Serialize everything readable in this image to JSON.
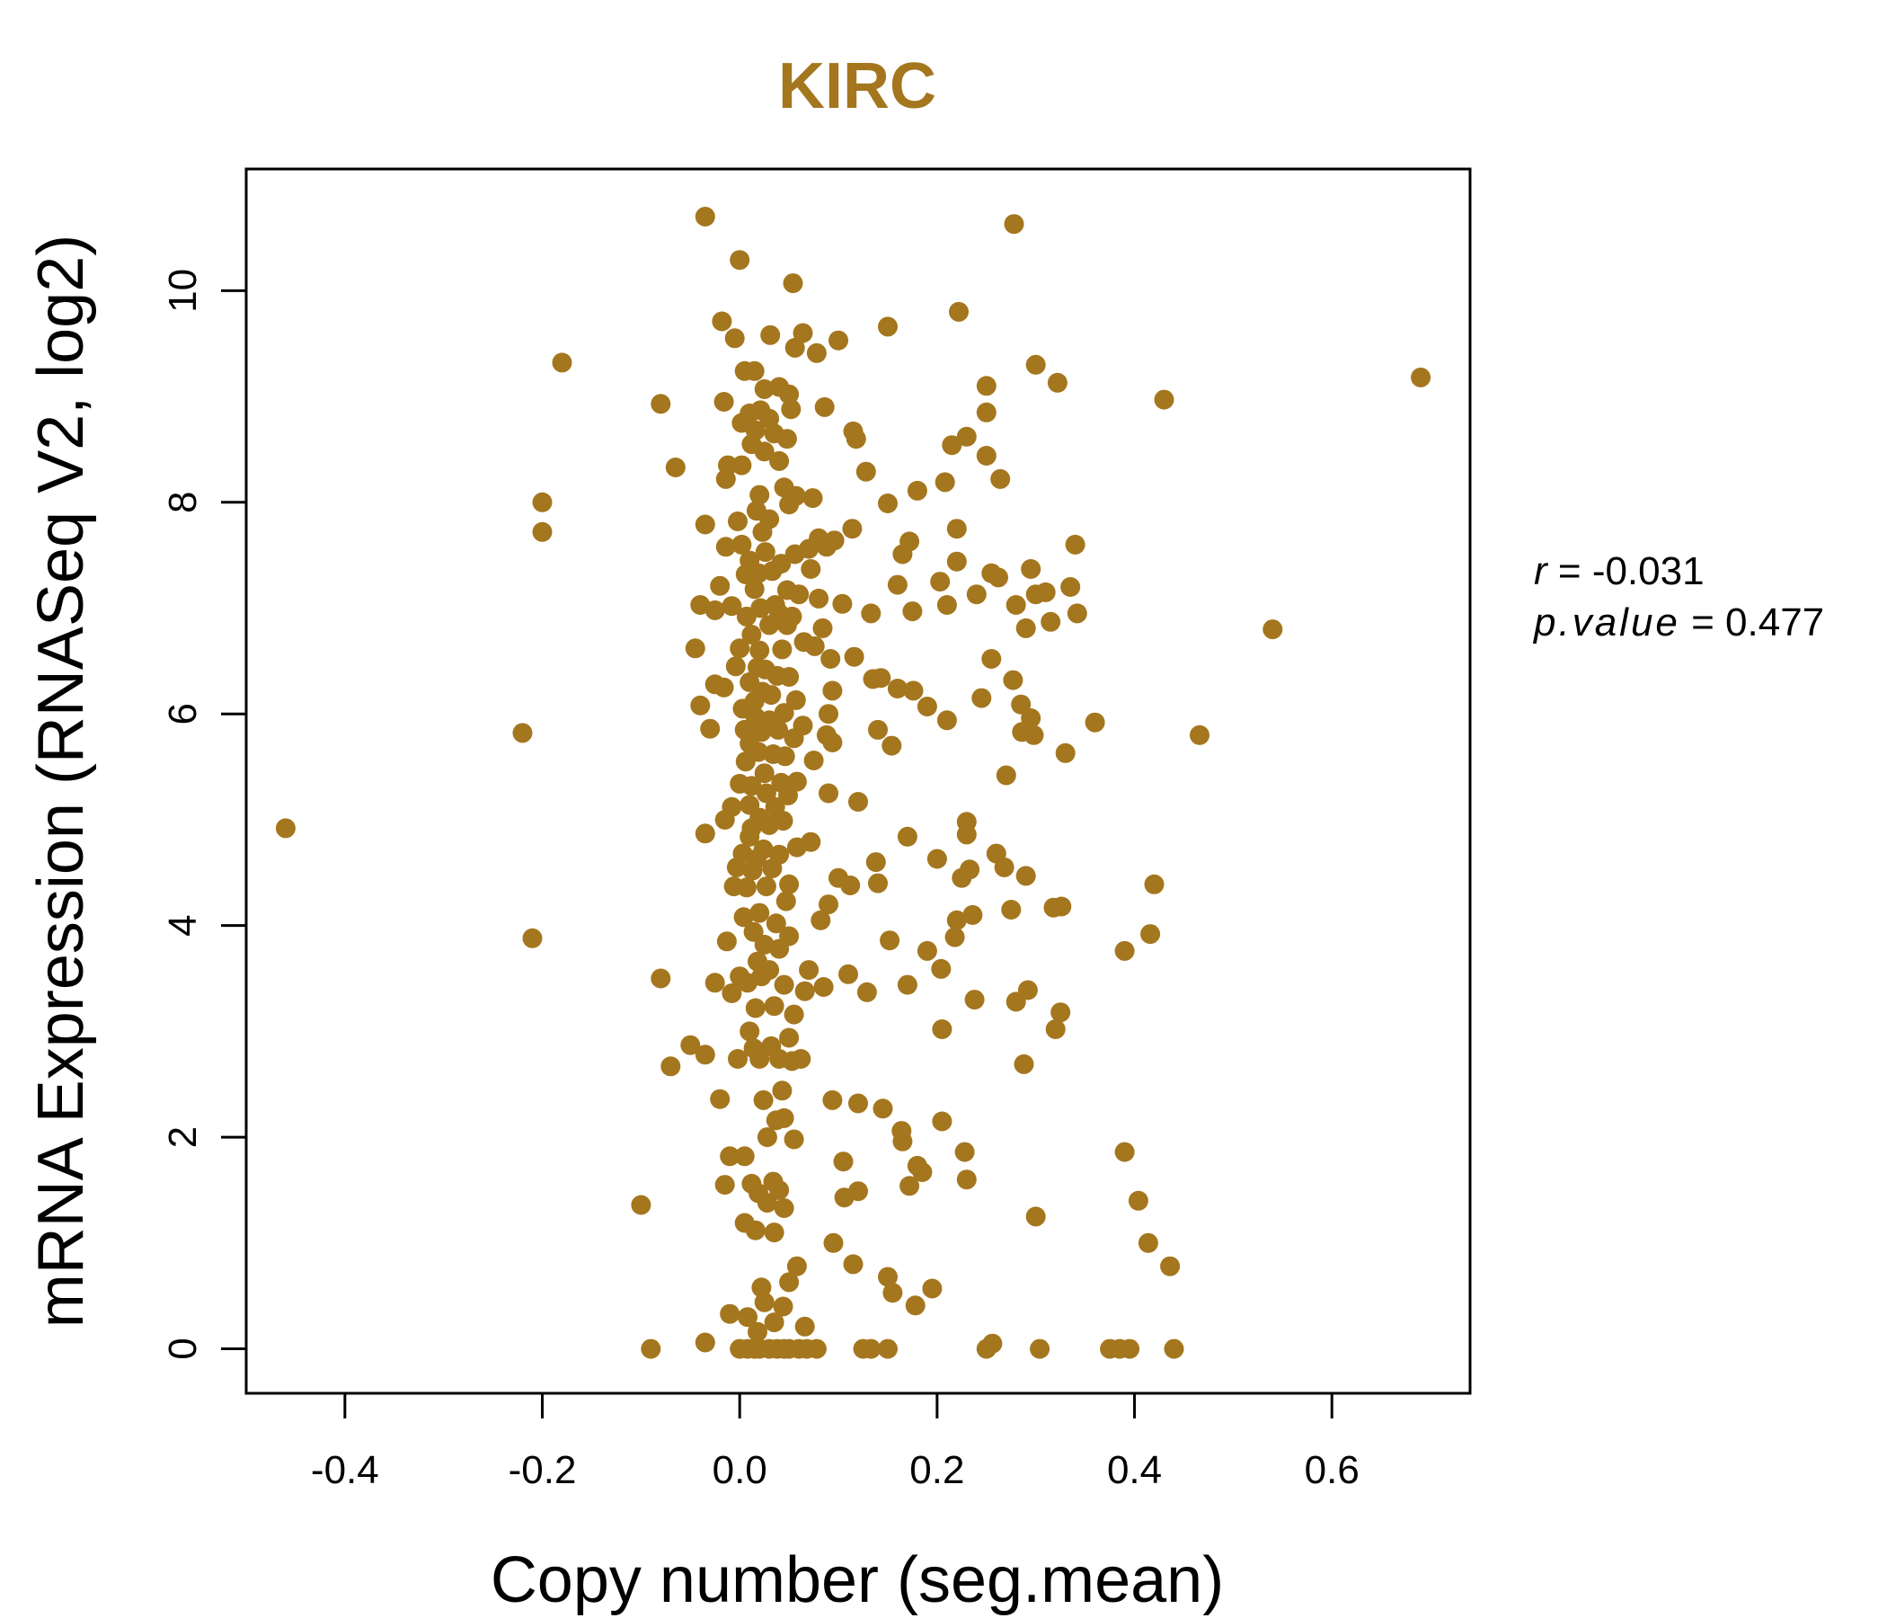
{
  "colors": {
    "accent": "#A4761E",
    "axis": "#000000",
    "background": "#FFFFFF"
  },
  "chart_data": {
    "type": "scatter",
    "title": "KIRC",
    "xlabel": "Copy number (seg.mean)",
    "ylabel": "mRNA Expression (RNASeq V2, log2)",
    "xlim": [
      -0.5,
      0.74
    ],
    "ylim": [
      -0.42,
      11.15
    ],
    "x_ticks": [
      -0.4,
      -0.2,
      0.0,
      0.2,
      0.4,
      0.6
    ],
    "x_tick_labels": [
      "-0.4",
      "-0.2",
      "0.0",
      "0.2",
      "0.4",
      "0.6"
    ],
    "y_ticks": [
      0,
      2,
      4,
      6,
      8,
      10
    ],
    "y_tick_labels": [
      "0",
      "2",
      "4",
      "6",
      "8",
      "10"
    ],
    "grid": false,
    "legend": "none",
    "stats": {
      "r_label": "r",
      "r_value": "-0.031",
      "p_label": "p.value",
      "p_value": "0.477"
    },
    "points": [
      [
        -0.46,
        4.92
      ],
      [
        -0.22,
        5.82
      ],
      [
        -0.2,
        8.0
      ],
      [
        -0.2,
        7.72
      ],
      [
        -0.21,
        3.88
      ],
      [
        -0.18,
        9.32
      ],
      [
        -0.1,
        1.36
      ],
      [
        -0.09,
        0.0
      ],
      [
        -0.08,
        8.93
      ],
      [
        -0.08,
        3.5
      ],
      [
        -0.07,
        2.67
      ],
      [
        -0.065,
        8.33
      ],
      [
        -0.05,
        2.87
      ],
      [
        -0.045,
        6.62
      ],
      [
        -0.04,
        7.03
      ],
      [
        -0.04,
        6.08
      ],
      [
        -0.035,
        10.7
      ],
      [
        -0.035,
        7.79
      ],
      [
        -0.035,
        4.87
      ],
      [
        -0.035,
        2.78
      ],
      [
        -0.035,
        0.06
      ],
      [
        -0.03,
        5.86
      ],
      [
        -0.025,
        6.98
      ],
      [
        -0.025,
        6.28
      ],
      [
        -0.025,
        3.46
      ],
      [
        -0.02,
        7.21
      ],
      [
        -0.02,
        2.36
      ],
      [
        -0.018,
        9.71
      ],
      [
        -0.016,
        8.95
      ],
      [
        -0.016,
        6.25
      ],
      [
        -0.015,
        5.0
      ],
      [
        -0.015,
        1.55
      ],
      [
        -0.014,
        8.22
      ],
      [
        -0.014,
        7.58
      ],
      [
        -0.013,
        3.85
      ],
      [
        -0.012,
        8.35
      ],
      [
        -0.01,
        1.82
      ],
      [
        -0.01,
        0.33
      ],
      [
        -0.008,
        7.02
      ],
      [
        -0.008,
        5.12
      ],
      [
        -0.008,
        3.36
      ],
      [
        -0.006,
        4.37
      ],
      [
        -0.005,
        9.55
      ],
      [
        -0.004,
        6.45
      ],
      [
        -0.003,
        4.55
      ],
      [
        -0.002,
        7.82
      ],
      [
        -0.002,
        2.74
      ],
      [
        0.0,
        10.29
      ],
      [
        0.0,
        6.62
      ],
      [
        0.0,
        5.34
      ],
      [
        0.0,
        3.52
      ],
      [
        0.0,
        0.0
      ],
      [
        0.002,
        8.75
      ],
      [
        0.002,
        8.35
      ],
      [
        0.002,
        7.6
      ],
      [
        0.003,
        6.05
      ],
      [
        0.003,
        4.68
      ],
      [
        0.004,
        4.08
      ],
      [
        0.005,
        9.24
      ],
      [
        0.005,
        5.85
      ],
      [
        0.005,
        1.82
      ],
      [
        0.005,
        1.19
      ],
      [
        0.006,
        7.32
      ],
      [
        0.006,
        5.55
      ],
      [
        0.007,
        6.92
      ],
      [
        0.007,
        4.36
      ],
      [
        0.008,
        3.46
      ],
      [
        0.008,
        0.3
      ],
      [
        0.008,
        0.0
      ],
      [
        0.01,
        8.84
      ],
      [
        0.01,
        7.45
      ],
      [
        0.01,
        6.3
      ],
      [
        0.01,
        5.72
      ],
      [
        0.01,
        5.14
      ],
      [
        0.01,
        4.84
      ],
      [
        0.01,
        3.0
      ],
      [
        0.012,
        8.55
      ],
      [
        0.012,
        6.75
      ],
      [
        0.012,
        5.32
      ],
      [
        0.012,
        4.92
      ],
      [
        0.012,
        1.56
      ],
      [
        0.013,
        4.52
      ],
      [
        0.014,
        3.94
      ],
      [
        0.014,
        2.84
      ],
      [
        0.015,
        9.24
      ],
      [
        0.015,
        7.18
      ],
      [
        0.015,
        6.12
      ],
      [
        0.015,
        0.0
      ],
      [
        0.016,
        8.68
      ],
      [
        0.016,
        5.97
      ],
      [
        0.016,
        3.22
      ],
      [
        0.016,
        1.12
      ],
      [
        0.017,
        7.92
      ],
      [
        0.017,
        4.63
      ],
      [
        0.018,
        6.44
      ],
      [
        0.018,
        3.66
      ],
      [
        0.018,
        0.16
      ],
      [
        0.019,
        7.33
      ],
      [
        0.019,
        5.64
      ],
      [
        0.019,
        1.47
      ],
      [
        0.02,
        8.07
      ],
      [
        0.02,
        6.6
      ],
      [
        0.02,
        5.02
      ],
      [
        0.02,
        4.12
      ],
      [
        0.02,
        2.74
      ],
      [
        0.02,
        0.0
      ],
      [
        0.021,
        8.87
      ],
      [
        0.021,
        7.0
      ],
      [
        0.022,
        5.83
      ],
      [
        0.022,
        3.52
      ],
      [
        0.022,
        0.58
      ],
      [
        0.023,
        7.72
      ],
      [
        0.023,
        6.21
      ],
      [
        0.024,
        4.72
      ],
      [
        0.024,
        2.35
      ],
      [
        0.025,
        9.07
      ],
      [
        0.025,
        8.48
      ],
      [
        0.025,
        5.44
      ],
      [
        0.025,
        3.82
      ],
      [
        0.025,
        0.44
      ],
      [
        0.026,
        7.53
      ],
      [
        0.026,
        6.42
      ],
      [
        0.027,
        5.25
      ],
      [
        0.027,
        4.37
      ],
      [
        0.028,
        2.0
      ],
      [
        0.028,
        1.38
      ],
      [
        0.03,
        8.79
      ],
      [
        0.03,
        7.84
      ],
      [
        0.03,
        6.84
      ],
      [
        0.03,
        5.94
      ],
      [
        0.03,
        4.95
      ],
      [
        0.03,
        3.58
      ],
      [
        0.03,
        0.0
      ],
      [
        0.031,
        9.58
      ],
      [
        0.032,
        6.18
      ],
      [
        0.032,
        2.86
      ],
      [
        0.033,
        7.35
      ],
      [
        0.033,
        4.54
      ],
      [
        0.034,
        5.62
      ],
      [
        0.034,
        1.58
      ],
      [
        0.035,
        8.65
      ],
      [
        0.035,
        3.24
      ],
      [
        0.035,
        1.1
      ],
      [
        0.035,
        0.25
      ],
      [
        0.036,
        7.03
      ],
      [
        0.036,
        5.12
      ],
      [
        0.037,
        4.02
      ],
      [
        0.037,
        2.16
      ],
      [
        0.038,
        6.36
      ],
      [
        0.038,
        0.0
      ],
      [
        0.039,
        5.85
      ],
      [
        0.04,
        9.09
      ],
      [
        0.04,
        8.39
      ],
      [
        0.04,
        6.95
      ],
      [
        0.04,
        4.67
      ],
      [
        0.04,
        3.78
      ],
      [
        0.04,
        2.74
      ],
      [
        0.04,
        1.5
      ],
      [
        0.042,
        7.42
      ],
      [
        0.042,
        5.35
      ],
      [
        0.043,
        6.61
      ],
      [
        0.043,
        2.44
      ],
      [
        0.044,
        4.99
      ],
      [
        0.044,
        0.4
      ],
      [
        0.045,
        8.14
      ],
      [
        0.045,
        6.01
      ],
      [
        0.045,
        3.44
      ],
      [
        0.045,
        2.18
      ],
      [
        0.045,
        1.33
      ],
      [
        0.045,
        0.0
      ],
      [
        0.046,
        5.6
      ],
      [
        0.047,
        4.23
      ],
      [
        0.048,
        8.6
      ],
      [
        0.048,
        7.17
      ],
      [
        0.048,
        6.84
      ],
      [
        0.049,
        5.23
      ],
      [
        0.05,
        9.02
      ],
      [
        0.05,
        7.98
      ],
      [
        0.05,
        6.35
      ],
      [
        0.05,
        4.39
      ],
      [
        0.05,
        3.9
      ],
      [
        0.05,
        2.94
      ],
      [
        0.05,
        0.63
      ],
      [
        0.05,
        0.0
      ],
      [
        0.052,
        8.88
      ],
      [
        0.053,
        6.92
      ],
      [
        0.053,
        2.72
      ],
      [
        0.054,
        10.07
      ],
      [
        0.055,
        5.77
      ],
      [
        0.055,
        3.16
      ],
      [
        0.055,
        1.98
      ],
      [
        0.056,
        9.46
      ],
      [
        0.056,
        7.51
      ],
      [
        0.057,
        8.06
      ],
      [
        0.057,
        6.13
      ],
      [
        0.058,
        5.36
      ],
      [
        0.058,
        4.74
      ],
      [
        0.058,
        0.78
      ],
      [
        0.06,
        7.13
      ],
      [
        0.06,
        0.0
      ],
      [
        0.062,
        2.74
      ],
      [
        0.064,
        9.6
      ],
      [
        0.064,
        5.89
      ],
      [
        0.065,
        6.68
      ],
      [
        0.066,
        3.38
      ],
      [
        0.066,
        0.21
      ],
      [
        0.068,
        0.0
      ],
      [
        0.07,
        7.56
      ],
      [
        0.07,
        3.58
      ],
      [
        0.072,
        7.37
      ],
      [
        0.072,
        4.79
      ],
      [
        0.074,
        8.04
      ],
      [
        0.075,
        5.56
      ],
      [
        0.076,
        6.64
      ],
      [
        0.078,
        9.41
      ],
      [
        0.078,
        0.0
      ],
      [
        0.08,
        7.66
      ],
      [
        0.08,
        7.09
      ],
      [
        0.082,
        4.05
      ],
      [
        0.084,
        6.81
      ],
      [
        0.085,
        3.42
      ],
      [
        0.086,
        8.9
      ],
      [
        0.088,
        7.58
      ],
      [
        0.088,
        5.8
      ],
      [
        0.09,
        6.0
      ],
      [
        0.09,
        5.25
      ],
      [
        0.09,
        4.2
      ],
      [
        0.092,
        6.52
      ],
      [
        0.094,
        6.22
      ],
      [
        0.094,
        5.73
      ],
      [
        0.094,
        2.35
      ],
      [
        0.095,
        1.0
      ],
      [
        0.096,
        7.64
      ],
      [
        0.1,
        9.53
      ],
      [
        0.1,
        4.45
      ],
      [
        0.104,
        7.04
      ],
      [
        0.105,
        1.77
      ],
      [
        0.106,
        1.43
      ],
      [
        0.11,
        3.54
      ],
      [
        0.112,
        4.38
      ],
      [
        0.114,
        7.75
      ],
      [
        0.115,
        8.67
      ],
      [
        0.115,
        0.8
      ],
      [
        0.116,
        6.54
      ],
      [
        0.118,
        8.6
      ],
      [
        0.12,
        5.17
      ],
      [
        0.12,
        2.32
      ],
      [
        0.12,
        1.49
      ],
      [
        0.125,
        0.0
      ],
      [
        0.128,
        8.29
      ],
      [
        0.129,
        3.37
      ],
      [
        0.133,
        6.95
      ],
      [
        0.133,
        0.0
      ],
      [
        0.135,
        6.33
      ],
      [
        0.138,
        4.6
      ],
      [
        0.14,
        4.4
      ],
      [
        0.14,
        5.85
      ],
      [
        0.143,
        6.34
      ],
      [
        0.145,
        2.27
      ],
      [
        0.15,
        9.66
      ],
      [
        0.15,
        7.99
      ],
      [
        0.15,
        0.68
      ],
      [
        0.15,
        0.0
      ],
      [
        0.152,
        3.86
      ],
      [
        0.154,
        5.7
      ],
      [
        0.155,
        0.53
      ],
      [
        0.16,
        7.22
      ],
      [
        0.16,
        6.24
      ],
      [
        0.164,
        2.06
      ],
      [
        0.165,
        7.51
      ],
      [
        0.165,
        1.96
      ],
      [
        0.17,
        4.84
      ],
      [
        0.17,
        3.44
      ],
      [
        0.172,
        7.63
      ],
      [
        0.172,
        1.54
      ],
      [
        0.175,
        6.97
      ],
      [
        0.176,
        6.22
      ],
      [
        0.178,
        0.41
      ],
      [
        0.18,
        8.11
      ],
      [
        0.18,
        1.73
      ],
      [
        0.185,
        1.67
      ],
      [
        0.19,
        6.07
      ],
      [
        0.19,
        3.76
      ],
      [
        0.195,
        0.57
      ],
      [
        0.2,
        4.63
      ],
      [
        0.203,
        7.25
      ],
      [
        0.204,
        3.59
      ],
      [
        0.205,
        2.15
      ],
      [
        0.205,
        3.02
      ],
      [
        0.208,
        8.19
      ],
      [
        0.21,
        7.03
      ],
      [
        0.21,
        5.94
      ],
      [
        0.215,
        8.54
      ],
      [
        0.218,
        3.89
      ],
      [
        0.22,
        7.75
      ],
      [
        0.22,
        7.44
      ],
      [
        0.22,
        4.05
      ],
      [
        0.222,
        9.8
      ],
      [
        0.225,
        4.45
      ],
      [
        0.228,
        1.86
      ],
      [
        0.23,
        4.98
      ],
      [
        0.23,
        4.86
      ],
      [
        0.23,
        1.6
      ],
      [
        0.23,
        8.62
      ],
      [
        0.233,
        4.53
      ],
      [
        0.236,
        4.1
      ],
      [
        0.238,
        3.3
      ],
      [
        0.24,
        7.13
      ],
      [
        0.245,
        6.15
      ],
      [
        0.25,
        8.44
      ],
      [
        0.25,
        9.1
      ],
      [
        0.25,
        8.85
      ],
      [
        0.25,
        0.0
      ],
      [
        0.255,
        6.52
      ],
      [
        0.255,
        7.33
      ],
      [
        0.256,
        0.05
      ],
      [
        0.26,
        4.68
      ],
      [
        0.262,
        7.29
      ],
      [
        0.264,
        8.22
      ],
      [
        0.268,
        4.55
      ],
      [
        0.27,
        5.42
      ],
      [
        0.275,
        4.15
      ],
      [
        0.277,
        6.32
      ],
      [
        0.278,
        10.63
      ],
      [
        0.28,
        7.03
      ],
      [
        0.28,
        3.28
      ],
      [
        0.285,
        6.09
      ],
      [
        0.286,
        5.83
      ],
      [
        0.288,
        2.69
      ],
      [
        0.29,
        6.81
      ],
      [
        0.29,
        4.47
      ],
      [
        0.292,
        3.39
      ],
      [
        0.295,
        5.96
      ],
      [
        0.295,
        7.37
      ],
      [
        0.298,
        5.8
      ],
      [
        0.3,
        7.13
      ],
      [
        0.3,
        9.3
      ],
      [
        0.3,
        1.25
      ],
      [
        0.304,
        0.0
      ],
      [
        0.31,
        7.15
      ],
      [
        0.315,
        6.87
      ],
      [
        0.318,
        4.17
      ],
      [
        0.32,
        3.02
      ],
      [
        0.322,
        9.13
      ],
      [
        0.325,
        3.18
      ],
      [
        0.326,
        4.18
      ],
      [
        0.33,
        5.63
      ],
      [
        0.335,
        7.2
      ],
      [
        0.34,
        7.6
      ],
      [
        0.342,
        6.95
      ],
      [
        0.36,
        5.92
      ],
      [
        0.375,
        0.0
      ],
      [
        0.385,
        0.0
      ],
      [
        0.39,
        1.86
      ],
      [
        0.39,
        3.76
      ],
      [
        0.395,
        0.0
      ],
      [
        0.404,
        1.4
      ],
      [
        0.414,
        1.0
      ],
      [
        0.416,
        3.92
      ],
      [
        0.42,
        4.39
      ],
      [
        0.43,
        8.97
      ],
      [
        0.436,
        0.78
      ],
      [
        0.44,
        0.0
      ],
      [
        0.466,
        5.8
      ],
      [
        0.54,
        6.8
      ],
      [
        0.69,
        9.18
      ]
    ]
  }
}
